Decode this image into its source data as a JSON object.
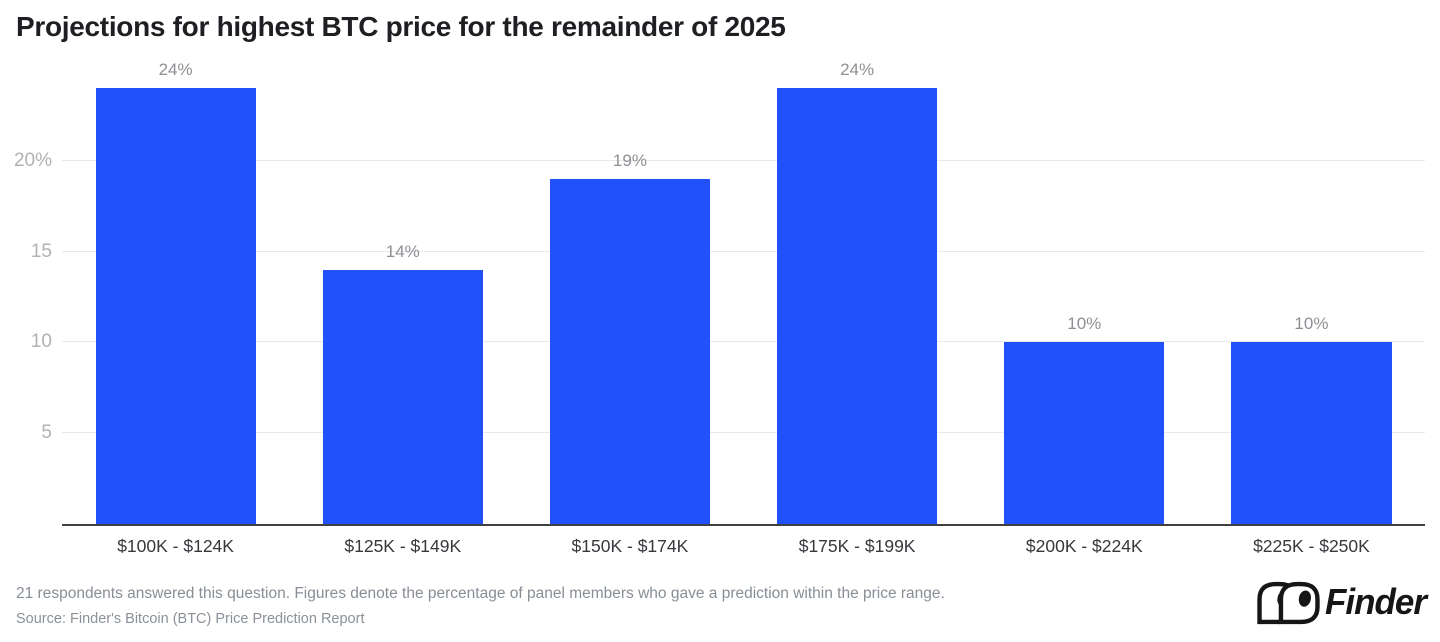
{
  "chart_data": {
    "type": "bar",
    "title": "Projections for highest BTC price for the remainder of 2025",
    "categories": [
      "$100K - $124K",
      "$125K - $149K",
      "$150K - $174K",
      "$175K - $199K",
      "$200K - $224K",
      "$225K - $250K"
    ],
    "values": [
      24,
      14,
      19,
      24,
      10,
      10
    ],
    "value_labels": [
      "24%",
      "14%",
      "19%",
      "24%",
      "10%",
      "10%"
    ],
    "yticks": [
      {
        "value": 5,
        "label": "5"
      },
      {
        "value": 10,
        "label": "10"
      },
      {
        "value": 15,
        "label": "15"
      },
      {
        "value": 20,
        "label": "20%"
      }
    ],
    "ylim": [
      0,
      26
    ],
    "xlabel": "",
    "ylabel": "",
    "grid": "horizontal",
    "legend_position": "none",
    "bar_color": "#2151fb"
  },
  "footer": {
    "note": "21 respondents answered this question. Figures denote the percentage of panel members who gave a prediction within the price range.",
    "source": "Source: Finder's Bitcoin (BTC) Price Prediction Report"
  },
  "branding": {
    "logo_text": "Finder",
    "logo_icon": "finder-eyes-icon"
  }
}
